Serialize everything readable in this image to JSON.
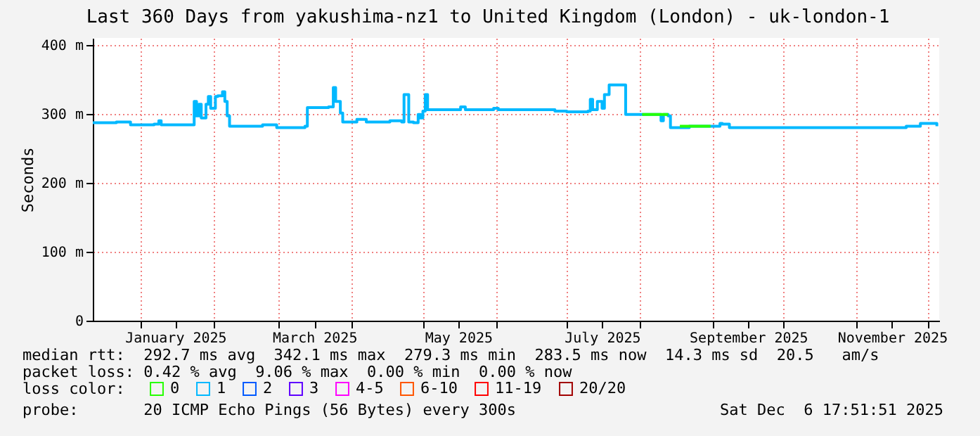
{
  "chart_data": {
    "type": "step",
    "title": "Last 360 Days from yakushima-nz1 to United Kingdom (London) - uk-london-1",
    "ylabel": "Seconds",
    "legend_title": "loss color:",
    "legend": "bottom",
    "xlim": [
      "2024-12-12",
      "2025-12-06"
    ],
    "xticks": [
      {
        "value": "2025-01-01",
        "label": null
      },
      {
        "value": "2025-01-16",
        "label": "January 2025"
      },
      {
        "value": "2025-02-01",
        "label": null
      },
      {
        "value": "2025-03-01",
        "label": null
      },
      {
        "value": "2025-03-16",
        "label": "March 2025"
      },
      {
        "value": "2025-04-01",
        "label": null
      },
      {
        "value": "2025-05-01",
        "label": null
      },
      {
        "value": "2025-05-16",
        "label": "May 2025"
      },
      {
        "value": "2025-06-01",
        "label": null
      },
      {
        "value": "2025-07-01",
        "label": null
      },
      {
        "value": "2025-07-16",
        "label": "July 2025"
      },
      {
        "value": "2025-08-01",
        "label": null
      },
      {
        "value": "2025-09-01",
        "label": null
      },
      {
        "value": "2025-09-16",
        "label": "September 2025"
      },
      {
        "value": "2025-10-01",
        "label": null
      },
      {
        "value": "2025-11-01",
        "label": null
      },
      {
        "value": "2025-11-16",
        "label": "November 2025"
      },
      {
        "value": "2025-12-01",
        "label": null
      }
    ],
    "ylim": [
      0,
      410
    ],
    "yticks": [
      0,
      {
        "value": 100,
        "label": "100 m"
      },
      {
        "value": 200,
        "label": "200 m"
      },
      {
        "value": 300,
        "label": "300 m"
      },
      {
        "value": 400,
        "label": "400 m"
      }
    ],
    "grid": true,
    "series": [
      {
        "name": "0",
        "color": "#26ff00",
        "x": [
          "2025-08-02",
          "2025-08-13",
          "2025-08-14",
          "2025-08-18",
          "2025-08-31"
        ],
        "values": [
          299,
          299,
          null,
          282,
          282
        ]
      },
      {
        "name": "1",
        "color": "#00b8ff",
        "x": [
          "2024-12-12",
          "2024-12-22",
          "2024-12-28",
          "2025-01-07",
          "2025-01-09",
          "2025-01-10",
          "2025-01-23",
          "2025-01-24",
          "2025-01-25",
          "2025-01-26",
          "2025-01-27",
          "2025-01-29",
          "2025-01-30",
          "2025-01-31",
          "2025-02-02",
          "2025-02-03",
          "2025-02-05",
          "2025-02-06",
          "2025-02-07",
          "2025-02-08",
          "2025-02-14",
          "2025-02-22",
          "2025-02-28",
          "2025-03-12",
          "2025-03-13",
          "2025-03-22",
          "2025-03-24",
          "2025-03-25",
          "2025-03-27",
          "2025-03-28",
          "2025-04-03",
          "2025-04-07",
          "2025-04-17",
          "2025-04-22",
          "2025-04-23",
          "2025-04-25",
          "2025-04-27",
          "2025-04-29",
          "2025-04-30",
          "2025-05-01",
          "2025-05-02",
          "2025-05-03",
          "2025-05-09",
          "2025-05-17",
          "2025-05-19",
          "2025-05-31",
          "2025-06-02",
          "2025-06-11",
          "2025-06-26",
          "2025-07-01",
          "2025-07-10",
          "2025-07-11",
          "2025-07-12",
          "2025-07-14",
          "2025-07-16",
          "2025-07-17",
          "2025-07-19",
          "2025-07-24",
          "2025-07-26",
          "2025-08-08",
          "2025-08-10",
          "2025-08-11",
          "2025-08-13",
          "2025-08-14",
          "2025-08-22",
          "2025-08-31",
          "2025-09-04",
          "2025-09-05",
          "2025-09-08",
          "2025-11-18",
          "2025-11-22",
          "2025-11-28",
          "2025-12-05"
        ],
        "values": [
          287,
          288,
          284,
          285,
          290,
          284,
          284,
          318,
          297,
          314,
          294,
          314,
          325,
          308,
          325,
          326,
          332,
          318,
          297,
          282,
          282,
          284,
          280,
          282,
          309,
          310,
          338,
          318,
          301,
          288,
          292,
          288,
          290,
          288,
          328,
          288,
          287,
          299,
          294,
          304,
          328,
          306,
          306,
          310,
          306,
          308,
          306,
          306,
          304,
          303,
          304,
          321,
          306,
          318,
          308,
          328,
          342,
          342,
          299,
          299,
          290,
          299,
          297,
          280,
          282,
          282,
          286,
          285,
          280,
          280,
          282,
          286,
          282
        ]
      },
      {
        "name": "2",
        "color": "#0059ff"
      },
      {
        "name": "3",
        "color": "#5e00ff"
      },
      {
        "name": "4-5",
        "color": "#ff00ff"
      },
      {
        "name": "6-10",
        "color": "#ff5500"
      },
      {
        "name": "11-19",
        "color": "#ff0000"
      },
      {
        "name": "20/20",
        "color": "#a10000"
      }
    ],
    "annotations": [
      "median rtt:  292.7 ms avg  342.1 ms max  279.3 ms min  283.5 ms now  14.3 ms sd  20.5   am/s",
      "packet loss: 0.42 % avg  9.06 % max  0.00 % min  0.00 % now",
      "probe:       20 ICMP Echo Pings (56 Bytes) every 300s",
      "Sat Dec  6 17:51:51 2025"
    ]
  }
}
